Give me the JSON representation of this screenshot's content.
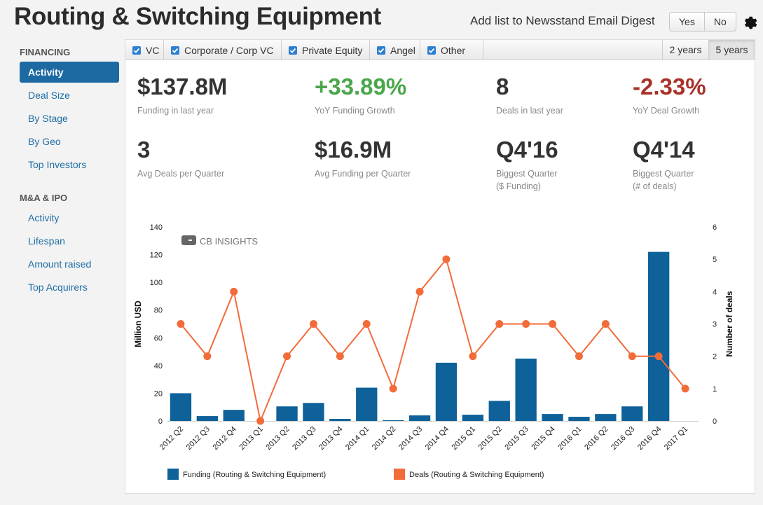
{
  "page": {
    "title": "Routing & Switching Equipment",
    "digest_label": "Add list to Newsstand Email Digest",
    "yes_label": "Yes",
    "no_label": "No",
    "gear_icon": "gear-icon"
  },
  "sidebar": {
    "financing_heading": "FINANCING",
    "financing_items": [
      {
        "label": "Activity",
        "active": true
      },
      {
        "label": "Deal Size"
      },
      {
        "label": "By Stage"
      },
      {
        "label": "By Geo"
      },
      {
        "label": "Top Investors"
      }
    ],
    "mna_heading": "M&A & IPO",
    "mna_items": [
      {
        "label": "Activity"
      },
      {
        "label": "Lifespan"
      },
      {
        "label": "Amount raised"
      },
      {
        "label": "Top Acquirers"
      }
    ]
  },
  "filters": {
    "items": [
      {
        "label": "VC",
        "checked": true
      },
      {
        "label": "Corporate / Corp VC",
        "checked": true
      },
      {
        "label": "Private Equity",
        "checked": true
      },
      {
        "label": "Angel",
        "checked": true
      },
      {
        "label": "Other",
        "checked": true
      }
    ],
    "years": [
      {
        "label": "2 years"
      },
      {
        "label": "5 years",
        "active": true
      }
    ]
  },
  "stats": [
    {
      "value": "$137.8M",
      "label": "Funding in last year",
      "color": "default"
    },
    {
      "value": "+33.89%",
      "label": "YoY Funding Growth",
      "color": "green"
    },
    {
      "value": "8",
      "label": "Deals in last year",
      "color": "default"
    },
    {
      "value": "-2.33%",
      "label": "YoY Deal Growth",
      "color": "red"
    },
    {
      "value": "3",
      "label": "Avg Deals per Quarter",
      "color": "default"
    },
    {
      "value": "$16.9M",
      "label": "Avg Funding per Quarter",
      "color": "default"
    },
    {
      "value": "Q4'16",
      "label": "Biggest Quarter",
      "sub": "($ Funding)",
      "color": "default"
    },
    {
      "value": "Q4'14",
      "label": "Biggest Quarter",
      "sub": "(# of deals)",
      "color": "default"
    }
  ],
  "colors": {
    "bar": "#0e6199",
    "line": "#f26c3a",
    "positive": "#4aa64a",
    "negative": "#a8322a",
    "accent": "#1d6aa2"
  },
  "watermark": "CB INSIGHTS",
  "chart_data": {
    "type": "bar",
    "categories": [
      "2012 Q2",
      "2012 Q3",
      "2012 Q4",
      "2013 Q1",
      "2013 Q2",
      "2013 Q3",
      "2013 Q4",
      "2014 Q1",
      "2014 Q2",
      "2014 Q3",
      "2014 Q4",
      "2015 Q1",
      "2015 Q2",
      "2015 Q3",
      "2015 Q4",
      "2016 Q1",
      "2016 Q2",
      "2016 Q3",
      "2016 Q4",
      "2017 Q1"
    ],
    "series": [
      {
        "name": "Funding (Routing & Switching Equipment)",
        "type": "bar",
        "axis": "left",
        "values": [
          20,
          3.5,
          8,
          0,
          10.5,
          13,
          1.5,
          24,
          0.5,
          4,
          42,
          4.5,
          14.5,
          45,
          5,
          3,
          5,
          10.5,
          122,
          0
        ]
      },
      {
        "name": "Deals (Routing & Switching Equipment)",
        "type": "line",
        "axis": "right",
        "values": [
          3,
          2,
          4,
          0,
          2,
          3,
          2,
          3,
          1,
          4,
          5,
          2,
          3,
          3,
          3,
          2,
          3,
          2,
          2,
          1
        ]
      }
    ],
    "ylabel": "Million USD",
    "y2label": "Number of deals",
    "ylim": [
      0,
      140
    ],
    "y2lim": [
      0,
      6
    ],
    "yticks": [
      0,
      20,
      40,
      60,
      80,
      100,
      120,
      140
    ],
    "y2ticks": [
      0,
      1,
      2,
      3,
      4,
      5,
      6
    ],
    "legend": "bottom-left"
  }
}
